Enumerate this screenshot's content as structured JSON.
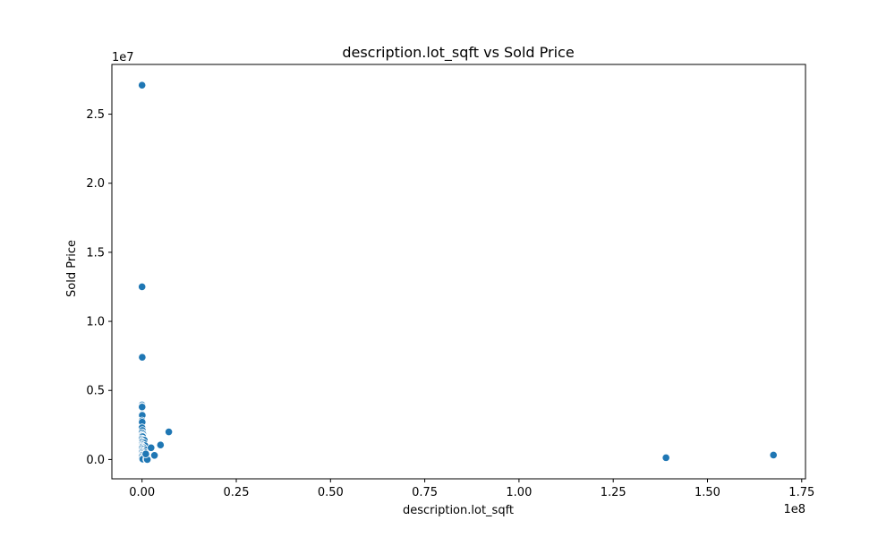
{
  "chart_data": {
    "type": "scatter",
    "title": "description.lot_sqft vs Sold Price",
    "xlabel": "description.lot_sqft",
    "ylabel": "Sold Price",
    "x_offset_label": "1e8",
    "y_offset_label": "1e7",
    "xlim": [
      -8000000,
      176000000
    ],
    "ylim": [
      -1400000,
      28600000
    ],
    "x_ticks": [
      {
        "value": 0,
        "label": "0.00"
      },
      {
        "value": 25000000,
        "label": "0.25"
      },
      {
        "value": 50000000,
        "label": "0.50"
      },
      {
        "value": 75000000,
        "label": "0.75"
      },
      {
        "value": 100000000,
        "label": "1.00"
      },
      {
        "value": 125000000,
        "label": "1.25"
      },
      {
        "value": 150000000,
        "label": "1.50"
      },
      {
        "value": 175000000,
        "label": "1.75"
      }
    ],
    "y_ticks": [
      {
        "value": 0,
        "label": "0.0"
      },
      {
        "value": 5000000,
        "label": "0.5"
      },
      {
        "value": 10000000,
        "label": "1.0"
      },
      {
        "value": 15000000,
        "label": "1.5"
      },
      {
        "value": 20000000,
        "label": "2.0"
      },
      {
        "value": 25000000,
        "label": "2.5"
      }
    ],
    "grid": false,
    "marker_color": "#1f77b4",
    "points": [
      [
        0,
        27100000
      ],
      [
        0,
        12500000
      ],
      [
        50000,
        7400000
      ],
      [
        0,
        3950000
      ],
      [
        0,
        3850000
      ],
      [
        20000,
        3800000
      ],
      [
        30000,
        3250000
      ],
      [
        60000,
        3200000
      ],
      [
        0,
        2800000
      ],
      [
        40000,
        2700000
      ],
      [
        0,
        2300000
      ],
      [
        100000,
        2100000
      ],
      [
        0,
        1950000
      ],
      [
        200000,
        1850000
      ],
      [
        50000,
        1750000
      ],
      [
        0,
        1700000
      ],
      [
        150000,
        1650000
      ],
      [
        0,
        1500000
      ],
      [
        300000,
        1450000
      ],
      [
        600000,
        1400000
      ],
      [
        0,
        1300000
      ],
      [
        100000,
        1250000
      ],
      [
        500000,
        1200000
      ],
      [
        0,
        1100000
      ],
      [
        200000,
        1050000
      ],
      [
        800000,
        1000000
      ],
      [
        0,
        950000
      ],
      [
        50000,
        900000
      ],
      [
        400000,
        850000
      ],
      [
        0,
        800000
      ],
      [
        300000,
        750000
      ],
      [
        900000,
        700000
      ],
      [
        0,
        650000
      ],
      [
        150000,
        600000
      ],
      [
        600000,
        550000
      ],
      [
        0,
        500000
      ],
      [
        250000,
        450000
      ],
      [
        700000,
        400000
      ],
      [
        0,
        350000
      ],
      [
        100000,
        300000
      ],
      [
        500000,
        250000
      ],
      [
        0,
        200000
      ],
      [
        300000,
        150000
      ],
      [
        800000,
        100000
      ],
      [
        0,
        50000
      ],
      [
        200000,
        30000
      ],
      [
        1200000,
        20000
      ],
      [
        1400000,
        0
      ],
      [
        1000000,
        400000
      ],
      [
        2400000,
        850000
      ],
      [
        3300000,
        300000
      ],
      [
        4900000,
        1050000
      ],
      [
        7100000,
        2000000
      ],
      [
        139000000,
        130000
      ],
      [
        167500000,
        320000
      ]
    ]
  }
}
